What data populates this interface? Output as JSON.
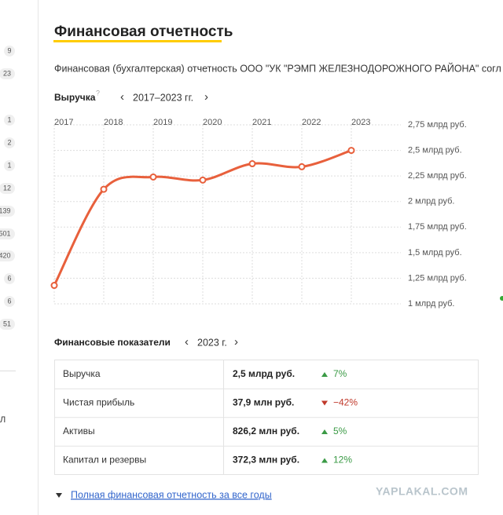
{
  "sidebar": {
    "counts": [
      9,
      23,
      1,
      2,
      1,
      12,
      139,
      501,
      420,
      6,
      6,
      51
    ],
    "partial": "Л"
  },
  "header": {
    "title": "Финансовая отчетность",
    "subtitle": "Финансовая (бухгалтерская) отчетность ООО \"УК \"РЭМП ЖЕЛЕЗНОДОРОЖНОГО РАЙОНА\" согл"
  },
  "chart_data": {
    "type": "line",
    "title": "Выручка",
    "help": "?",
    "period": "2017–2023 гг.",
    "categories": [
      "2017",
      "2018",
      "2019",
      "2020",
      "2021",
      "2022",
      "2023"
    ],
    "series": [
      {
        "name": "Выручка",
        "color": "#e8603c",
        "values": [
          1.18,
          2.12,
          2.24,
          2.21,
          2.37,
          2.34,
          2.5
        ]
      }
    ],
    "ylim": [
      1,
      2.75
    ],
    "yticks": [
      {
        "value": 1,
        "label": "1 млрд руб."
      },
      {
        "value": 1.25,
        "label": "1,25 млрд руб."
      },
      {
        "value": 1.5,
        "label": "1,5 млрд руб."
      },
      {
        "value": 1.75,
        "label": "1,75 млрд руб."
      },
      {
        "value": 2,
        "label": "2 млрд руб."
      },
      {
        "value": 2.25,
        "label": "2,25 млрд руб."
      },
      {
        "value": 2.5,
        "label": "2,5 млрд руб."
      },
      {
        "value": 2.75,
        "label": "2,75 млрд руб."
      }
    ],
    "grid": true
  },
  "indicators": {
    "title": "Финансовые показатели",
    "period": "2023 г."
  },
  "table": {
    "rows": [
      {
        "label": "Выручка",
        "value": "2,5 млрд руб.",
        "change": "7%"
      },
      {
        "label": "Чистая прибыль",
        "value": "37,9 млн руб.",
        "change": "−42%"
      },
      {
        "label": "Активы",
        "value": "826,2 млн руб.",
        "change": "5%"
      },
      {
        "label": "Капитал и резервы",
        "value": "372,3 млн руб.",
        "change": "12%"
      }
    ]
  },
  "footer": {
    "link": "Полная финансовая отчетность за все годы",
    "watermark": "YAPLAKAL.COM"
  }
}
